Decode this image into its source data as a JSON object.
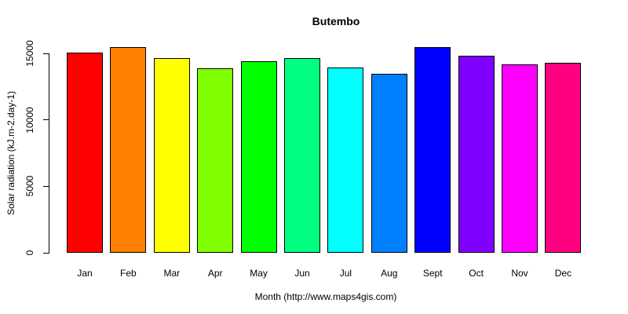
{
  "page": {
    "background": "#FFFFFF",
    "text_color": "#000000"
  },
  "chart_data": {
    "type": "bar",
    "title": "Butembo",
    "xlabel": "Month (http://www.maps4gis.com)",
    "ylabel": "Solar radiation (kJ.m-2.day-1)",
    "categories": [
      "Jan",
      "Feb",
      "Mar",
      "Apr",
      "May",
      "Jun",
      "Jul",
      "Aug",
      "Sept",
      "Oct",
      "Nov",
      "Dec"
    ],
    "values": [
      15050,
      15500,
      14650,
      13900,
      14400,
      14650,
      13950,
      13450,
      15500,
      14800,
      14150,
      14300
    ],
    "bar_colors": [
      "#FF0000",
      "#FF8000",
      "#FFFF00",
      "#80FF00",
      "#00FF00",
      "#00FF80",
      "#00FFFF",
      "#0080FF",
      "#0000FF",
      "#8000FF",
      "#FF00FF",
      "#FF0080"
    ],
    "bar_border_color": "#000000",
    "yticks": [
      0,
      5000,
      10000,
      15000
    ],
    "ylim": [
      0,
      15800
    ],
    "grid": false,
    "legend": "none",
    "units": "kJ.m-2.day-1"
  }
}
